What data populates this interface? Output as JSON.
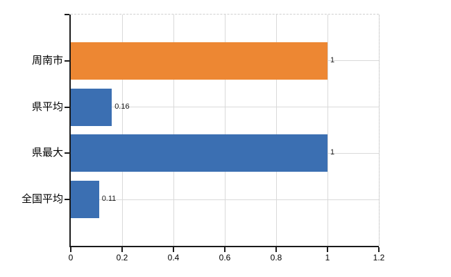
{
  "chart_data": {
    "type": "bar",
    "orientation": "horizontal",
    "title": "",
    "xlabel": "",
    "ylabel": "",
    "categories": [
      "周南市",
      "県平均",
      "県最大",
      "全国平均"
    ],
    "values": [
      1,
      0.16,
      1,
      0.11
    ],
    "value_labels": [
      "1",
      "0.16",
      "1",
      "0.11"
    ],
    "bar_colors": [
      "#ED8733",
      "#3B6FB2",
      "#3B6FB2",
      "#3B6FB2"
    ],
    "xlim": [
      0,
      1.2
    ],
    "x_ticks": [
      0,
      0.2,
      0.4,
      0.6,
      0.8,
      1,
      1.2
    ],
    "x_tick_labels": [
      "0",
      "0.2",
      "0.4",
      "0.6",
      "0.8",
      "1",
      "1.2"
    ],
    "grid": true,
    "legend": false
  },
  "colors": {
    "accent_orange": "#ED8733",
    "accent_blue": "#3B6FB2",
    "gridline": "#d9d9d9",
    "axis": "#1a1a1a",
    "text": "#000000",
    "background": "#ffffff"
  }
}
